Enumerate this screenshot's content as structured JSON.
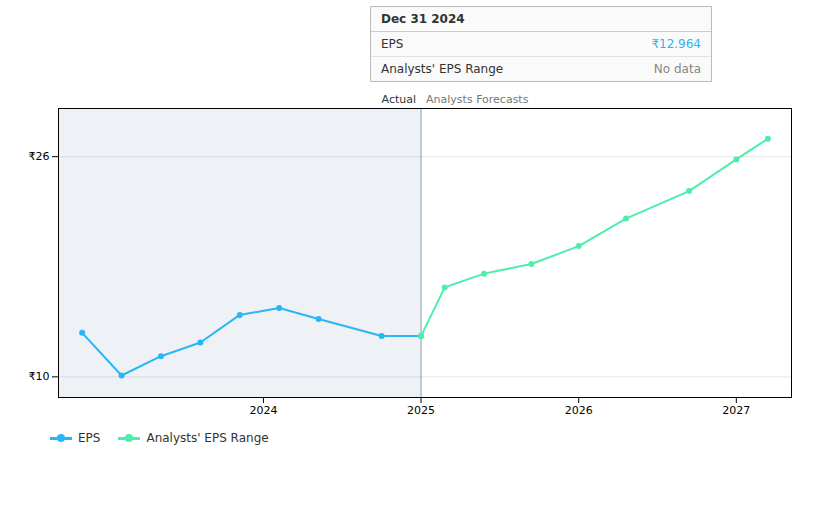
{
  "chart_data": {
    "type": "line",
    "series": [
      {
        "name": "EPS",
        "color": "#29b6f6",
        "marker": "circle",
        "x": [
          2022.85,
          2023.1,
          2023.35,
          2023.6,
          2023.85,
          2024.1,
          2024.35,
          2024.75,
          2025.0
        ],
        "values": [
          13.2,
          10.1,
          11.5,
          12.5,
          14.5,
          15.0,
          14.2,
          12.964,
          12.964
        ]
      },
      {
        "name": "Analysts' EPS Range",
        "color": "#4deeaa",
        "marker": "circle",
        "x": [
          2025.0,
          2025.15,
          2025.4,
          2025.7,
          2026.0,
          2026.3,
          2026.7,
          2027.0,
          2027.2
        ],
        "values": [
          12.964,
          16.5,
          17.5,
          18.2,
          19.5,
          21.5,
          23.5,
          25.8,
          27.3
        ]
      }
    ],
    "xlim": [
      2022.7,
      2027.35
    ],
    "xticks": [
      2024,
      2025,
      2026,
      2027
    ],
    "ylim": [
      8.5,
      29.5
    ],
    "yticks": [
      {
        "value": 10,
        "label": "₹10"
      },
      {
        "value": 26,
        "label": "₹26"
      }
    ],
    "grid": "y",
    "legend": "bottom",
    "divider_x": 2025.0,
    "annotations": [
      {
        "text": "Actual",
        "x": 2025.0
      },
      {
        "text": "Analysts Forecasts",
        "x": 2025.0
      }
    ],
    "tooltip": {
      "title": "Dec 31 2024",
      "rows": [
        {
          "label": "EPS",
          "value": 12.964,
          "value_label": "₹12.964",
          "color": "#29b6f6"
        },
        {
          "label": "Analysts' EPS Range",
          "value_label": "No data",
          "color": "#888888"
        }
      ]
    }
  }
}
